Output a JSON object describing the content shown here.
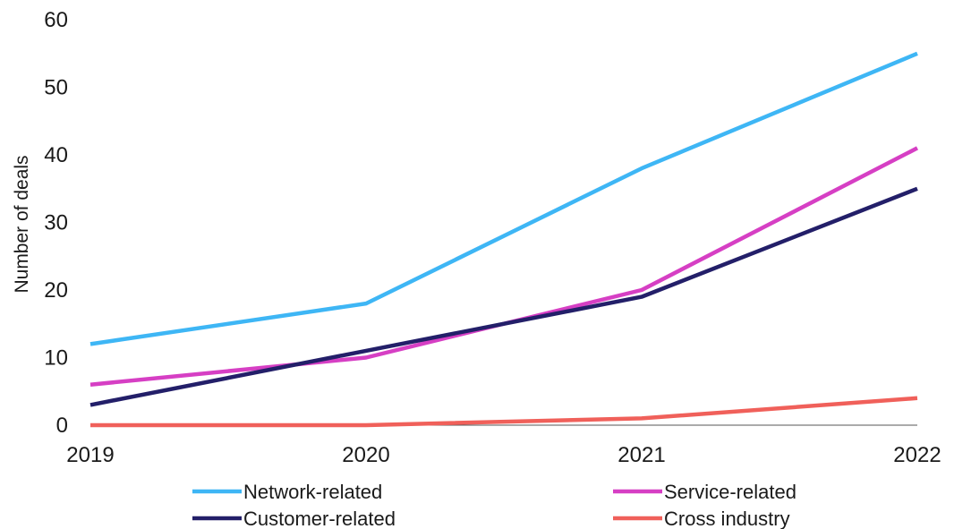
{
  "chart_data": {
    "type": "line",
    "title": "",
    "xlabel": "",
    "ylabel": "Number of deals",
    "x": [
      "2019",
      "2020",
      "2021",
      "2022"
    ],
    "ylim": [
      0,
      60
    ],
    "yticks": [
      0,
      10,
      20,
      30,
      40,
      50,
      60
    ],
    "grid": false,
    "legend_position": "bottom",
    "series": [
      {
        "name": "Network-related",
        "color": "#3eb6f5",
        "values": [
          12,
          18,
          38,
          55
        ]
      },
      {
        "name": "Service-related",
        "color": "#d63fc4",
        "values": [
          6,
          10,
          20,
          41
        ]
      },
      {
        "name": "Customer-related",
        "color": "#231f69",
        "values": [
          3,
          11,
          19,
          35
        ]
      },
      {
        "name": "Cross industry",
        "color": "#f0605a",
        "values": [
          0,
          0,
          1,
          4
        ]
      }
    ]
  }
}
